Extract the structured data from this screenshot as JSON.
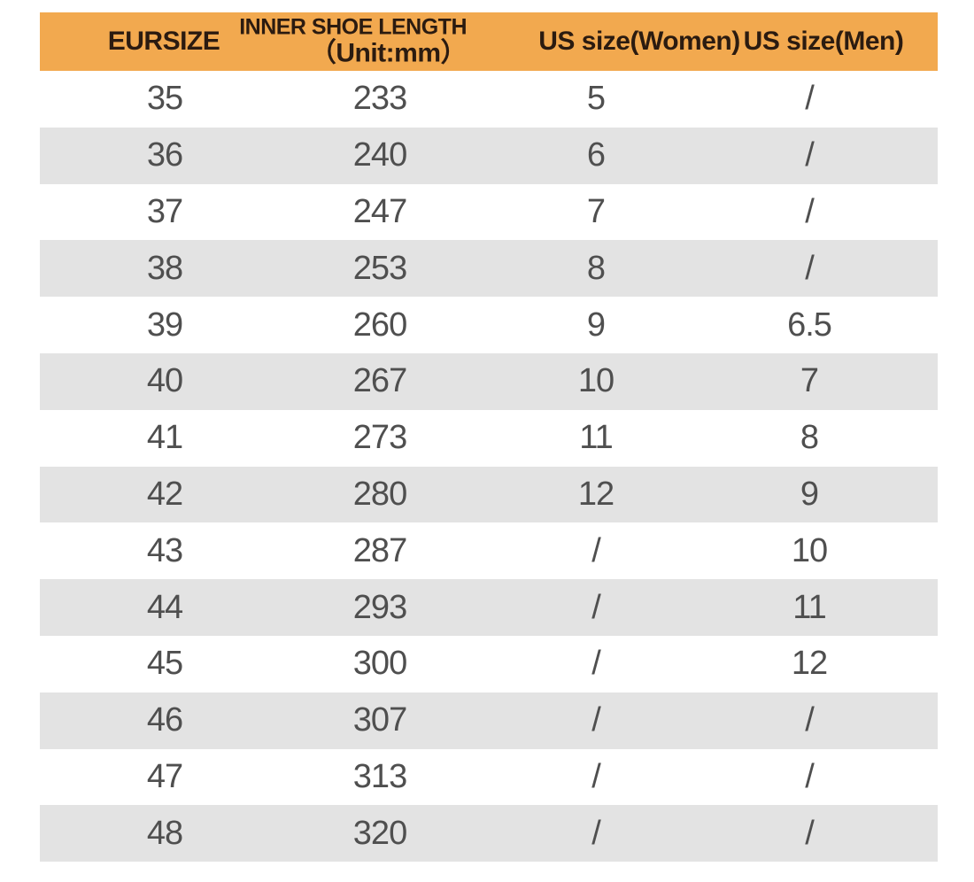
{
  "colors": {
    "page-bg": "#FFFFFF",
    "header-bg": "#F2A94F",
    "header-text": "#2B1B10",
    "row-bg": "#FFFFFF",
    "row-alt-bg": "#E3E3E3",
    "data-text": "#4F4F4F"
  },
  "chart_data": {
    "type": "table",
    "columns": {
      "eursize": "EURSIZE",
      "inner_length_line1": "INNER SHOE LENGTH",
      "inner_length_line2": "（Unit:mm）",
      "us_women": "US size(Women)",
      "us_men": "US size(Men)"
    },
    "rows": [
      [
        "35",
        "233",
        "5",
        "/"
      ],
      [
        "36",
        "240",
        "6",
        "/"
      ],
      [
        "37",
        "247",
        "7",
        "/"
      ],
      [
        "38",
        "253",
        "8",
        "/"
      ],
      [
        "39",
        "260",
        "9",
        "6.5"
      ],
      [
        "40",
        "267",
        "10",
        "7"
      ],
      [
        "41",
        "273",
        "11",
        "8"
      ],
      [
        "42",
        "280",
        "12",
        "9"
      ],
      [
        "43",
        "287",
        "/",
        "10"
      ],
      [
        "44",
        "293",
        "/",
        "11"
      ],
      [
        "45",
        "300",
        "/",
        "12"
      ],
      [
        "46",
        "307",
        "/",
        "/"
      ],
      [
        "47",
        "313",
        "/",
        "/"
      ],
      [
        "48",
        "320",
        "/",
        "/"
      ]
    ]
  }
}
